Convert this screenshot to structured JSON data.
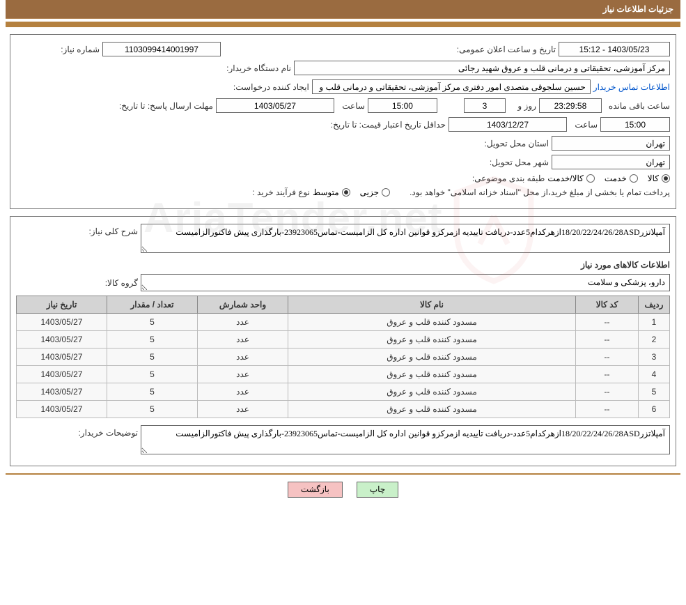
{
  "header": {
    "title": "جزئیات اطلاعات نیاز"
  },
  "fields": {
    "need_no_label": "شماره نیاز:",
    "need_no": "1103099414001997",
    "announce_label": "تاریخ و ساعت اعلان عمومی:",
    "announce_value": "1403/05/23 - 15:12",
    "buyer_org_label": "نام دستگاه خریدار:",
    "buyer_org": "مرکز آموزشی، تحقیقاتی و درمانی قلب و عروق شهید رجائی",
    "requester_label": "ایجاد کننده درخواست:",
    "requester": "حسین سلجوقی متصدی امور دفتری مرکز آموزشی، تحقیقاتی و درمانی قلب و :",
    "buyer_contact_link": "اطلاعات تماس خریدار",
    "deadline_label": "مهلت ارسال پاسخ:  تا تاریخ:",
    "deadline_date": "1403/05/27",
    "time_label": "ساعت",
    "deadline_time": "15:00",
    "days_remaining": "3",
    "days_and": "روز و",
    "time_remaining": "23:29:58",
    "remaining_suffix": "ساعت باقی مانده",
    "validity_label": "حداقل تاریخ اعتبار قیمت: تا تاریخ:",
    "validity_date": "1403/12/27",
    "validity_time": "15:00",
    "province_label": "استان محل تحویل:",
    "province": "تهران",
    "city_label": "شهر محل تحویل:",
    "city": "تهران",
    "category_label": "طبقه بندی موضوعی:",
    "category_opts": {
      "goods": "کالا",
      "service": "خدمت",
      "both": "کالا/خدمت"
    },
    "proc_type_label": "نوع فرآیند خرید :",
    "proc_type_opts": {
      "partial": "جزیی",
      "medium": "متوسط"
    },
    "payment_note": "پرداخت تمام یا بخشی از مبلغ خرید،از محل \"اسناد خزانه اسلامی\" خواهد بود.",
    "desc_label": "شرح کلی نیاز:",
    "desc_text": "آمپلاتزر18/20/22/24/26/28ASDازهرکدام5عدد-دریافت تاییدیه ازمرکزو قوانین اداره کل الزامیست-تماس23923065-بارگذاری پیش فاکتورالزامیست",
    "items_section_title": "اطلاعات کالاهای مورد نیاز",
    "goods_group_label": "گروه کالا:",
    "goods_group": "دارو، پزشکی و سلامت",
    "buyer_notes_label": "توضیحات خریدار:",
    "buyer_notes": "آمپلاتزر18/20/22/24/26/28ASDازهرکدام5عدد-دریافت تاییدیه ازمرکزو قوانین اداره کل الزامیست-تماس23923065-بارگذاری پیش فاکتورالزامیست"
  },
  "table": {
    "cols": {
      "idx": "ردیف",
      "code": "کد کالا",
      "name": "نام کالا",
      "unit": "واحد شمارش",
      "qty": "تعداد / مقدار",
      "date": "تاریخ نیاز"
    },
    "rows": [
      {
        "idx": "1",
        "code": "--",
        "name": "مسدود کننده قلب و عروق",
        "unit": "عدد",
        "qty": "5",
        "date": "1403/05/27"
      },
      {
        "idx": "2",
        "code": "--",
        "name": "مسدود کننده قلب و عروق",
        "unit": "عدد",
        "qty": "5",
        "date": "1403/05/27"
      },
      {
        "idx": "3",
        "code": "--",
        "name": "مسدود کننده قلب و عروق",
        "unit": "عدد",
        "qty": "5",
        "date": "1403/05/27"
      },
      {
        "idx": "4",
        "code": "--",
        "name": "مسدود کننده قلب و عروق",
        "unit": "عدد",
        "qty": "5",
        "date": "1403/05/27"
      },
      {
        "idx": "5",
        "code": "--",
        "name": "مسدود کننده قلب و عروق",
        "unit": "عدد",
        "qty": "5",
        "date": "1403/05/27"
      },
      {
        "idx": "6",
        "code": "--",
        "name": "مسدود کننده قلب و عروق",
        "unit": "عدد",
        "qty": "5",
        "date": "1403/05/27"
      }
    ]
  },
  "buttons": {
    "print": "چاپ",
    "back": "بازگشت"
  },
  "watermark": {
    "text": "AriaTender.net"
  },
  "colors": {
    "header_bg": "#9a6b40",
    "accent_bar": "#b5813f",
    "panel_border": "#7a7a7a",
    "th_bg": "#d4d4d4",
    "td_bg": "#f8f8f8",
    "link": "#0055cc",
    "btn_print": "#c9f0c9",
    "btn_back": "#f6c2c2",
    "watermark": "#b0b0b0"
  }
}
